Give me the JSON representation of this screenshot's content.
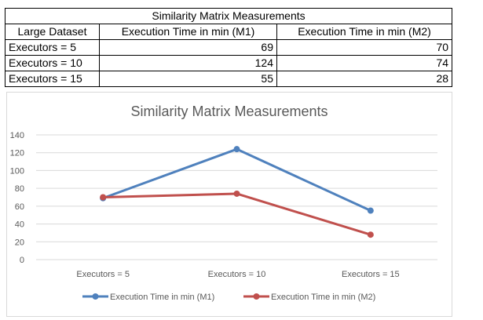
{
  "table": {
    "title": "Similarity Matrix Measurements",
    "headers": [
      "Large Dataset",
      "Execution Time in min (M1)",
      "Execution Time in min (M2)"
    ],
    "rows": [
      [
        "Executors = 5",
        "69",
        "70"
      ],
      [
        "Executors = 10",
        "124",
        "74"
      ],
      [
        "Executors = 15",
        "55",
        "28"
      ]
    ]
  },
  "chart_data": {
    "type": "line",
    "title": "Similarity Matrix Measurements",
    "categories": [
      "Executors = 5",
      "Executors = 10",
      "Executors = 15"
    ],
    "series": [
      {
        "name": "Execution Time in min (M1)",
        "values": [
          69,
          124,
          55
        ],
        "color": "#4f81bd"
      },
      {
        "name": "Execution Time in min (M2)",
        "values": [
          70,
          74,
          28
        ],
        "color": "#c0504d"
      }
    ],
    "xlabel": "",
    "ylabel": "",
    "ylim": [
      0,
      140
    ],
    "yticks": [
      0,
      20,
      40,
      60,
      80,
      100,
      120,
      140
    ],
    "grid": true,
    "legend": "bottom",
    "markers": true
  }
}
